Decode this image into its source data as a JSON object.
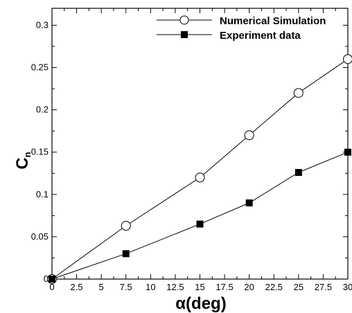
{
  "chart_data": {
    "type": "line",
    "xlabel": "α(deg)",
    "ylabel": "C",
    "ylabel_sub": "n",
    "xlim": [
      0,
      30
    ],
    "ylim": [
      0,
      0.32
    ],
    "xticks": [
      "0",
      "2.5",
      "5",
      "7.5",
      "10",
      "12.5",
      "15",
      "17.5",
      "20",
      "22.5",
      "25",
      "27.5",
      "30"
    ],
    "yticks": [
      "0",
      "0.05",
      "0.1",
      "0.15",
      "0.2",
      "0.25",
      "0.3"
    ],
    "grid": false,
    "legend_position": "top-right",
    "series": [
      {
        "name": "Numerical Simulation",
        "marker": "open-circle",
        "x": [
          0,
          7.5,
          15,
          20,
          25,
          30
        ],
        "y": [
          0,
          0.063,
          0.12,
          0.17,
          0.22,
          0.26
        ]
      },
      {
        "name": "Experiment data",
        "marker": "filled-square",
        "x": [
          0,
          7.5,
          15,
          20,
          25,
          30
        ],
        "y": [
          0,
          0.03,
          0.065,
          0.09,
          0.126,
          0.15
        ]
      }
    ]
  }
}
